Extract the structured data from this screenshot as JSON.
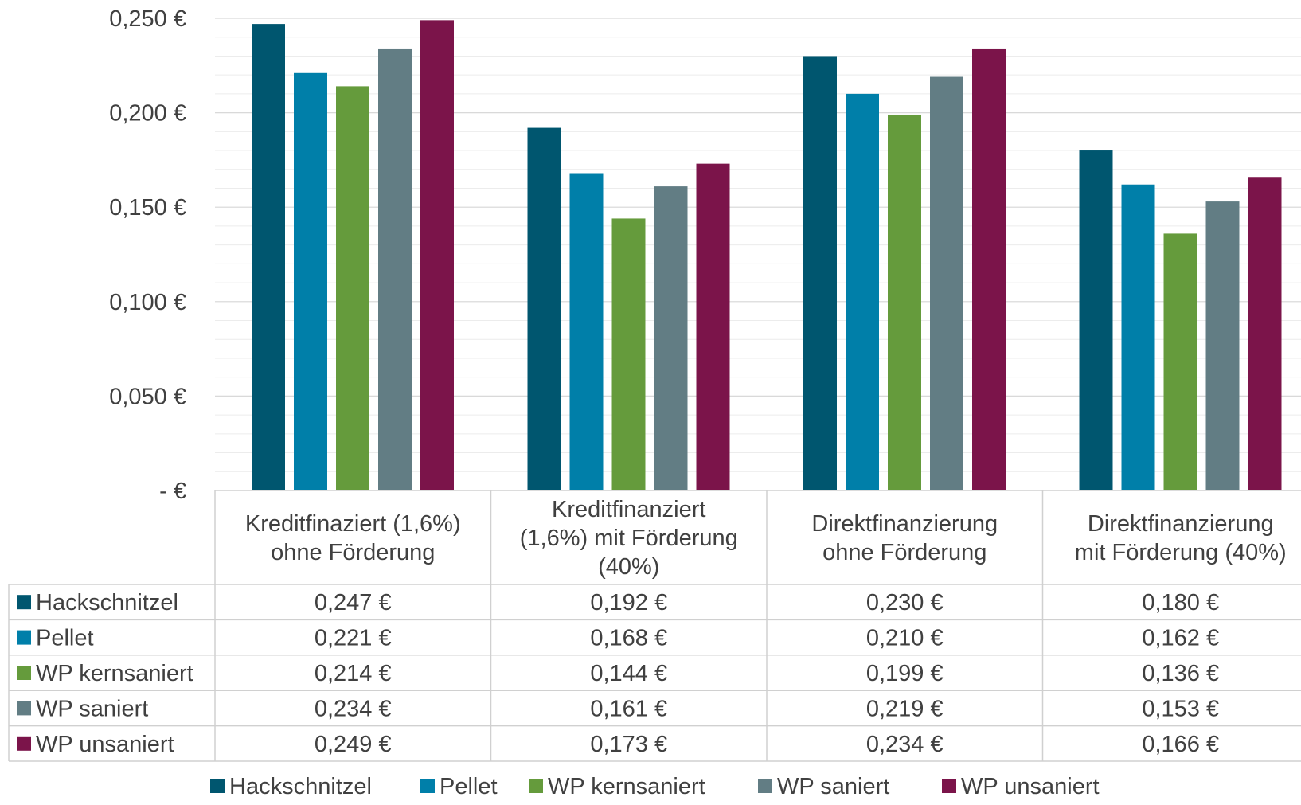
{
  "chart_data": {
    "type": "bar",
    "title": "",
    "xlabel": "",
    "ylabel": "",
    "ylim": [
      0,
      0.25
    ],
    "yticks": [
      {
        "value": 0.25,
        "label": "0,250 €"
      },
      {
        "value": 0.2,
        "label": "0,200 €"
      },
      {
        "value": 0.15,
        "label": "0,150 €"
      },
      {
        "value": 0.1,
        "label": "0,100 €"
      },
      {
        "value": 0.05,
        "label": "0,050 €"
      },
      {
        "value": 0,
        "label": "-   €"
      }
    ],
    "minor_gridline_step": 0.01,
    "grid": true,
    "legend_position": "bottom",
    "categories": [
      [
        "Kreditfinaziert (1,6%)",
        "ohne Förderung"
      ],
      [
        "Kreditfinanziert",
        "(1,6%) mit Förderung",
        "(40%)"
      ],
      [
        "Direktfinanzierung",
        "ohne Förderung"
      ],
      [
        "Direktfinanzierung",
        "mit Förderung (40%)"
      ]
    ],
    "series": [
      {
        "name": "Hackschnitzel",
        "color": "#00566f",
        "values": [
          0.247,
          0.192,
          0.23,
          0.18
        ],
        "labels": [
          "0,247 €",
          "0,192 €",
          "0,230 €",
          "0,180 €"
        ]
      },
      {
        "name": "Pellet",
        "color": "#007fa9",
        "values": [
          0.221,
          0.168,
          0.21,
          0.162
        ],
        "labels": [
          "0,221 €",
          "0,168 €",
          "0,210 €",
          "0,162 €"
        ]
      },
      {
        "name": "WP kernsaniert",
        "color": "#659b3c",
        "values": [
          0.214,
          0.144,
          0.199,
          0.136
        ],
        "labels": [
          "0,214 €",
          "0,144 €",
          "0,199 €",
          "0,136 €"
        ]
      },
      {
        "name": "WP saniert",
        "color": "#627d84",
        "values": [
          0.234,
          0.161,
          0.219,
          0.153
        ],
        "labels": [
          "0,234 €",
          "0,161 €",
          "0,219 €",
          "0,153 €"
        ]
      },
      {
        "name": "WP unsaniert",
        "color": "#7b144a",
        "values": [
          0.249,
          0.173,
          0.234,
          0.166
        ],
        "labels": [
          "0,249 €",
          "0,173 €",
          "0,234 €",
          "0,166 €"
        ]
      }
    ]
  }
}
